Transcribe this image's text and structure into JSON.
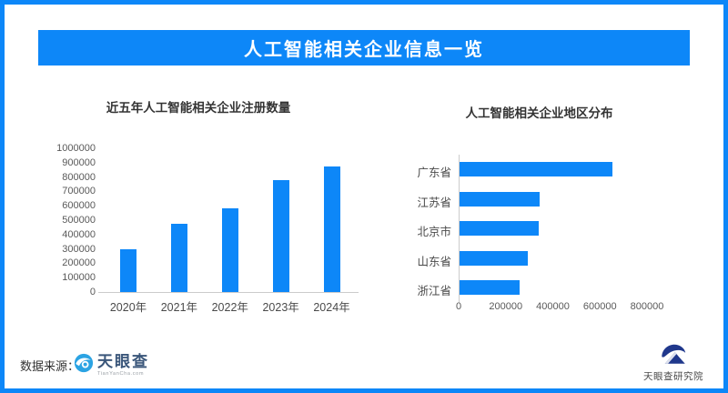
{
  "page": {
    "title": "人工智能相关企业信息一览",
    "source_label": "数据来源：",
    "footer_logo": {
      "name": "天眼查",
      "subtext": "TianYanCha.com"
    },
    "research_logo": {
      "name": "天眼查研究院"
    },
    "colors": {
      "primary_blue": "#0d87f8",
      "logo_sky_blue": "#2ba3e3",
      "logo_navy_text": "#3a567a",
      "emblem_navy": "#20388c",
      "axis_gray": "#cccccc",
      "label_gray": "#595959"
    }
  },
  "chart_data": [
    {
      "type": "bar",
      "orientation": "vertical",
      "title": "近五年人工智能相关企业注册数量",
      "categories": [
        "2020年",
        "2021年",
        "2022年",
        "2023年",
        "2024年"
      ],
      "values": [
        300000,
        475000,
        585000,
        780000,
        875000
      ],
      "xlabel": "",
      "ylabel": "",
      "ylim": [
        0,
        1000000
      ],
      "ytick_step": 100000,
      "grid": false,
      "legend": false,
      "bar_color": "#0d87f8"
    },
    {
      "type": "bar",
      "orientation": "horizontal",
      "title": "人工智能相关企业地区分布",
      "categories": [
        "广东省",
        "江苏省",
        "北京市",
        "山东省",
        "浙江省"
      ],
      "values": [
        650000,
        340000,
        335000,
        290000,
        255000
      ],
      "xlabel": "",
      "ylabel": "",
      "xlim": [
        0,
        800000
      ],
      "xticks": [
        0,
        200000,
        400000,
        600000,
        800000
      ],
      "grid": false,
      "legend": false,
      "bar_color": "#0d87f8"
    }
  ]
}
